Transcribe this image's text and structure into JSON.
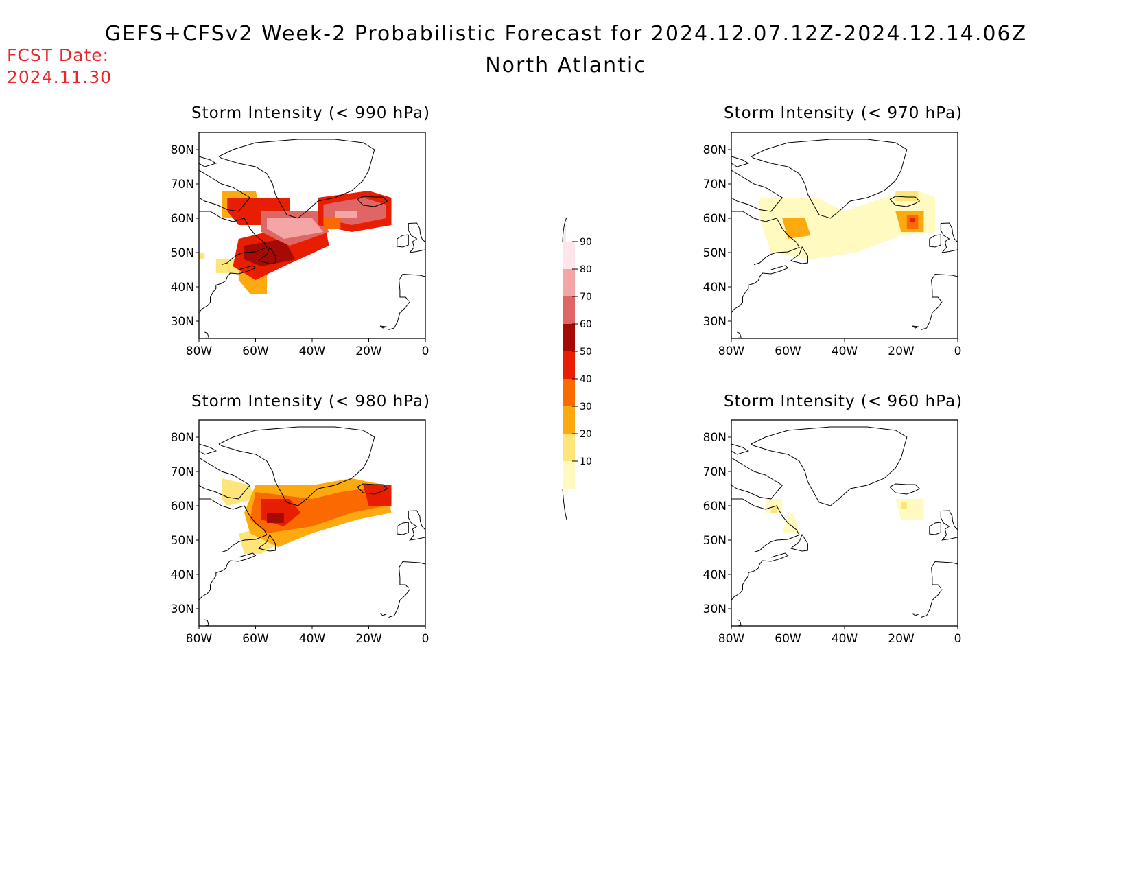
{
  "header": {
    "title": "GEFS+CFSv2 Week-2 Probabilistic Forecast for 2024.12.07.12Z-2024.12.14.06Z",
    "subtitle": "North Atlantic",
    "fcst_label": "FCST Date:",
    "fcst_date": "2024.11.30"
  },
  "axes": {
    "lat_ticks": [
      "80N",
      "70N",
      "60N",
      "50N",
      "40N",
      "30N"
    ],
    "lon_ticks": [
      "80W",
      "60W",
      "40W",
      "20W",
      "0"
    ]
  },
  "colorbar": {
    "levels": [
      "10",
      "20",
      "30",
      "40",
      "50",
      "60",
      "70",
      "80",
      "90"
    ],
    "colors": [
      "#fffac0",
      "#fde57a",
      "#fdaa10",
      "#fb6a00",
      "#e81e02",
      "#a50a04",
      "#e06666",
      "#f4a6a6",
      "#fde6e9"
    ]
  },
  "panels": [
    {
      "id": "p990",
      "title": "Storm Intensity (< 990 hPa)"
    },
    {
      "id": "p970",
      "title": "Storm Intensity (< 970 hPa)"
    },
    {
      "id": "p980",
      "title": "Storm Intensity (< 980 hPa)"
    },
    {
      "id": "p960",
      "title": "Storm Intensity (< 960 hPa)"
    }
  ],
  "regions": {
    "p990": [
      {
        "c": "#fde57a",
        "pts": [
          [
            -81,
            48
          ],
          [
            -78,
            48
          ],
          [
            -78,
            50
          ],
          [
            -81,
            50
          ]
        ]
      },
      {
        "c": "#fdaa10",
        "pts": [
          [
            -72,
            68
          ],
          [
            -60,
            68
          ],
          [
            -58,
            62
          ],
          [
            -66,
            60
          ],
          [
            -72,
            60
          ]
        ]
      },
      {
        "c": "#e81e02",
        "pts": [
          [
            -70,
            66
          ],
          [
            -48,
            66
          ],
          [
            -48,
            58
          ],
          [
            -66,
            58
          ],
          [
            -70,
            62
          ]
        ]
      },
      {
        "c": "#fdaa10",
        "pts": [
          [
            -66,
            46
          ],
          [
            -56,
            46
          ],
          [
            -56,
            38
          ],
          [
            -62,
            38
          ],
          [
            -66,
            42
          ]
        ]
      },
      {
        "c": "#fde57a",
        "pts": [
          [
            -74,
            48
          ],
          [
            -66,
            48
          ],
          [
            -66,
            44
          ],
          [
            -74,
            44
          ]
        ]
      },
      {
        "c": "#e81e02",
        "pts": [
          [
            -66,
            54
          ],
          [
            -36,
            60
          ],
          [
            -34,
            52
          ],
          [
            -50,
            46
          ],
          [
            -60,
            42
          ],
          [
            -68,
            46
          ]
        ]
      },
      {
        "c": "#a50a04",
        "pts": [
          [
            -64,
            52
          ],
          [
            -50,
            54
          ],
          [
            -46,
            48
          ],
          [
            -58,
            46
          ],
          [
            -64,
            48
          ]
        ]
      },
      {
        "c": "#e06666",
        "pts": [
          [
            -58,
            62
          ],
          [
            -38,
            62
          ],
          [
            -34,
            56
          ],
          [
            -48,
            52
          ],
          [
            -58,
            56
          ]
        ]
      },
      {
        "c": "#f4a6a6",
        "pts": [
          [
            -56,
            60
          ],
          [
            -40,
            60
          ],
          [
            -36,
            56
          ],
          [
            -50,
            54
          ],
          [
            -56,
            57
          ]
        ]
      },
      {
        "c": "#e81e02",
        "pts": [
          [
            -38,
            66
          ],
          [
            -20,
            68
          ],
          [
            -12,
            66
          ],
          [
            -12,
            58
          ],
          [
            -26,
            56
          ],
          [
            -38,
            58
          ]
        ]
      },
      {
        "c": "#e06666",
        "pts": [
          [
            -36,
            64
          ],
          [
            -22,
            66
          ],
          [
            -14,
            64
          ],
          [
            -14,
            60
          ],
          [
            -26,
            58
          ],
          [
            -36,
            60
          ]
        ]
      },
      {
        "c": "#f4a6a6",
        "pts": [
          [
            -32,
            62
          ],
          [
            -24,
            62
          ],
          [
            -24,
            60
          ],
          [
            -32,
            60
          ]
        ]
      },
      {
        "c": "#fb6a00",
        "pts": [
          [
            -36,
            60
          ],
          [
            -30,
            60
          ],
          [
            -30,
            57
          ],
          [
            -36,
            57
          ]
        ]
      }
    ],
    "p970": [
      {
        "c": "#fde57a",
        "pts": [
          [
            -66,
            64
          ],
          [
            -48,
            62
          ],
          [
            -38,
            60
          ],
          [
            -20,
            64
          ],
          [
            -10,
            66
          ],
          [
            -10,
            58
          ],
          [
            -20,
            56
          ],
          [
            -40,
            52
          ],
          [
            -56,
            50
          ],
          [
            -64,
            54
          ]
        ]
      },
      {
        "c": "#fffac0",
        "pts": [
          [
            -70,
            66
          ],
          [
            -50,
            66
          ],
          [
            -40,
            62
          ],
          [
            -26,
            66
          ],
          [
            -14,
            68
          ],
          [
            -8,
            66
          ],
          [
            -8,
            56
          ],
          [
            -20,
            55
          ],
          [
            -36,
            50
          ],
          [
            -52,
            48
          ],
          [
            -66,
            50
          ],
          [
            -70,
            60
          ]
        ]
      },
      {
        "c": "#fdaa10",
        "pts": [
          [
            -62,
            60
          ],
          [
            -54,
            60
          ],
          [
            -52,
            55
          ],
          [
            -60,
            54
          ]
        ]
      },
      {
        "c": "#fdaa10",
        "pts": [
          [
            -22,
            62
          ],
          [
            -12,
            62
          ],
          [
            -12,
            56
          ],
          [
            -20,
            56
          ]
        ]
      },
      {
        "c": "#fb6a00",
        "pts": [
          [
            -18,
            61
          ],
          [
            -14,
            61
          ],
          [
            -14,
            57
          ],
          [
            -18,
            57
          ]
        ]
      },
      {
        "c": "#e81e02",
        "pts": [
          [
            -17,
            60
          ],
          [
            -15,
            60
          ],
          [
            -15,
            59
          ],
          [
            -17,
            59
          ]
        ]
      },
      {
        "c": "#fde57a",
        "pts": [
          [
            -22,
            68
          ],
          [
            -14,
            68
          ],
          [
            -14,
            65
          ],
          [
            -22,
            65
          ]
        ]
      }
    ],
    "p980": [
      {
        "c": "#fde57a",
        "pts": [
          [
            -72,
            68
          ],
          [
            -62,
            66
          ],
          [
            -60,
            62
          ],
          [
            -70,
            60
          ],
          [
            -72,
            62
          ]
        ]
      },
      {
        "c": "#fde57a",
        "pts": [
          [
            -66,
            52
          ],
          [
            -54,
            54
          ],
          [
            -50,
            50
          ],
          [
            -58,
            46
          ],
          [
            -64,
            46
          ]
        ]
      },
      {
        "c": "#fdaa10",
        "pts": [
          [
            -60,
            66
          ],
          [
            -40,
            66
          ],
          [
            -26,
            68
          ],
          [
            -14,
            66
          ],
          [
            -12,
            58
          ],
          [
            -24,
            56
          ],
          [
            -40,
            52
          ],
          [
            -52,
            48
          ],
          [
            -62,
            52
          ],
          [
            -64,
            58
          ]
        ]
      },
      {
        "c": "#fb6a00",
        "pts": [
          [
            -60,
            64
          ],
          [
            -40,
            62
          ],
          [
            -30,
            64
          ],
          [
            -14,
            66
          ],
          [
            -14,
            60
          ],
          [
            -26,
            58
          ],
          [
            -40,
            54
          ],
          [
            -56,
            52
          ],
          [
            -62,
            56
          ]
        ]
      },
      {
        "c": "#e81e02",
        "pts": [
          [
            -58,
            62
          ],
          [
            -48,
            62
          ],
          [
            -44,
            58
          ],
          [
            -50,
            54
          ],
          [
            -58,
            56
          ]
        ]
      },
      {
        "c": "#a50a04",
        "pts": [
          [
            -56,
            58
          ],
          [
            -50,
            58
          ],
          [
            -50,
            55
          ],
          [
            -56,
            55
          ]
        ]
      },
      {
        "c": "#e81e02",
        "pts": [
          [
            -22,
            66
          ],
          [
            -12,
            66
          ],
          [
            -12,
            60
          ],
          [
            -20,
            60
          ]
        ]
      }
    ],
    "p960": [
      {
        "c": "#fffac0",
        "pts": [
          [
            -68,
            62
          ],
          [
            -62,
            62
          ],
          [
            -62,
            58
          ],
          [
            -68,
            58
          ]
        ]
      },
      {
        "c": "#fde57a",
        "pts": [
          [
            -66,
            60
          ],
          [
            -64,
            60
          ],
          [
            -64,
            58
          ],
          [
            -66,
            58
          ]
        ]
      },
      {
        "c": "#fffac0",
        "pts": [
          [
            -60,
            58
          ],
          [
            -58,
            58
          ],
          [
            -56,
            52
          ],
          [
            -62,
            52
          ]
        ]
      },
      {
        "c": "#fffac0",
        "pts": [
          [
            -22,
            62
          ],
          [
            -12,
            62
          ],
          [
            -12,
            56
          ],
          [
            -20,
            56
          ]
        ]
      },
      {
        "c": "#fde57a",
        "pts": [
          [
            -20,
            61
          ],
          [
            -18,
            61
          ],
          [
            -18,
            59
          ],
          [
            -20,
            59
          ]
        ]
      }
    ]
  }
}
